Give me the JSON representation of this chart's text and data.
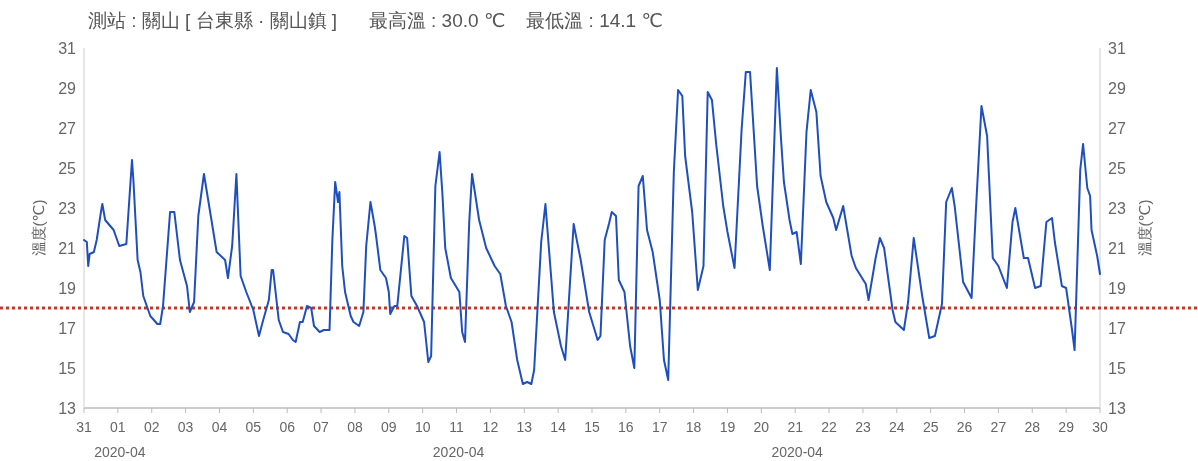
{
  "chart_data": {
    "type": "line",
    "title": "測站 : 關山 [ 台東縣 · 關山鎮 ]      最高溫 : 30.0 ℃    最低溫 : 14.1 ℃",
    "ylabel": "溫度(℃)",
    "y2label": "溫度(℃)",
    "xlim": [
      "2020-03-31",
      "2020-04-30"
    ],
    "xticks": [
      {
        "value": "2020-03-31",
        "label": "31"
      },
      {
        "value": "2020-04-01",
        "label": "01\n2020-04"
      },
      {
        "value": "2020-04-02",
        "label": "02"
      },
      {
        "value": "2020-04-03",
        "label": "03"
      },
      {
        "value": "2020-04-04",
        "label": "04"
      },
      {
        "value": "2020-04-05",
        "label": "05"
      },
      {
        "value": "2020-04-06",
        "label": "06"
      },
      {
        "value": "2020-04-07",
        "label": "07"
      },
      {
        "value": "2020-04-08",
        "label": "08"
      },
      {
        "value": "2020-04-09",
        "label": "09"
      },
      {
        "value": "2020-04-10",
        "label": "10"
      },
      {
        "value": "2020-04-11",
        "label": "11\n2020-04"
      },
      {
        "value": "2020-04-12",
        "label": "12"
      },
      {
        "value": "2020-04-13",
        "label": "13"
      },
      {
        "value": "2020-04-14",
        "label": "14"
      },
      {
        "value": "2020-04-15",
        "label": "15"
      },
      {
        "value": "2020-04-16",
        "label": "16"
      },
      {
        "value": "2020-04-17",
        "label": "17"
      },
      {
        "value": "2020-04-18",
        "label": "18"
      },
      {
        "value": "2020-04-19",
        "label": "19"
      },
      {
        "value": "2020-04-20",
        "label": "20"
      },
      {
        "value": "2020-04-21",
        "label": "21\n2020-04"
      },
      {
        "value": "2020-04-22",
        "label": "22"
      },
      {
        "value": "2020-04-23",
        "label": "23"
      },
      {
        "value": "2020-04-24",
        "label": "24"
      },
      {
        "value": "2020-04-25",
        "label": "25"
      },
      {
        "value": "2020-04-26",
        "label": "26"
      },
      {
        "value": "2020-04-27",
        "label": "27"
      },
      {
        "value": "2020-04-28",
        "label": "28"
      },
      {
        "value": "2020-04-29",
        "label": "29"
      },
      {
        "value": "2020-04-30",
        "label": "30"
      }
    ],
    "ylim": [
      13,
      31
    ],
    "yticks": [
      13,
      15,
      17,
      19,
      21,
      23,
      25,
      27,
      29,
      31
    ],
    "y2lim": [
      13,
      31
    ],
    "y2ticks": [
      13,
      15,
      17,
      19,
      21,
      23,
      25,
      27,
      29,
      31
    ],
    "grid": false,
    "marker": "none",
    "line_style": "solid",
    "ref_lines": [
      {
        "axis": "y",
        "value": 18,
        "color": "#c0392b",
        "line_style": "dotted"
      }
    ],
    "series": [
      {
        "color": "#1f4fbf",
        "x": [
          "2020-03-31T00:00",
          "2020-03-31T02:00",
          "2020-03-31T03:00",
          "2020-03-31T04:00",
          "2020-03-31T07:00",
          "2020-03-31T09:00",
          "2020-03-31T12:00",
          "2020-03-31T13:00",
          "2020-03-31T15:00",
          "2020-03-31T21:00",
          "2020-04-01T01:00",
          "2020-04-01T06:00",
          "2020-04-01T10:00",
          "2020-04-01T11:00",
          "2020-04-01T14:00",
          "2020-04-01T16:00",
          "2020-04-01T18:00",
          "2020-04-01T23:00",
          "2020-04-02T04:00",
          "2020-04-02T06:00",
          "2020-04-02T08:00",
          "2020-04-02T13:00",
          "2020-04-02T16:00",
          "2020-04-02T20:00",
          "2020-04-03T01:00",
          "2020-04-03T03:00",
          "2020-04-03T06:00",
          "2020-04-03T09:00",
          "2020-04-03T13:00",
          "2020-04-03T16:00",
          "2020-04-03T22:00",
          "2020-04-04T04:00",
          "2020-04-04T06:00",
          "2020-04-04T09:00",
          "2020-04-04T12:00",
          "2020-04-04T15:00",
          "2020-04-04T19:00",
          "2020-04-05T00:00",
          "2020-04-05T04:00",
          "2020-04-05T07:00",
          "2020-04-05T11:00",
          "2020-04-05T13:00",
          "2020-04-05T14:00",
          "2020-04-05T18:00",
          "2020-04-05T21:00",
          "2020-04-06T01:00",
          "2020-04-06T04:00",
          "2020-04-06T06:00",
          "2020-04-06T09:00",
          "2020-04-06T11:00",
          "2020-04-06T14:00",
          "2020-04-06T17:00",
          "2020-04-06T19:00",
          "2020-04-06T23:00",
          "2020-04-07T02:00",
          "2020-04-07T06:00",
          "2020-04-07T08:00",
          "2020-04-07T10:00",
          "2020-04-07T12:00",
          "2020-04-07T13:00",
          "2020-04-07T15:00",
          "2020-04-07T17:00",
          "2020-04-07T21:00",
          "2020-04-07T23:00",
          "2020-04-08T03:00",
          "2020-04-08T06:00",
          "2020-04-08T08:00",
          "2020-04-08T11:00",
          "2020-04-08T14:00",
          "2020-04-08T15:00",
          "2020-04-08T18:00",
          "2020-04-08T22:00",
          "2020-04-09T00:00",
          "2020-04-09T01:00",
          "2020-04-09T04:00",
          "2020-04-09T06:00",
          "2020-04-09T11:00",
          "2020-04-09T13:00",
          "2020-04-09T16:00",
          "2020-04-09T20:00",
          "2020-04-10T01:00",
          "2020-04-10T04:00",
          "2020-04-10T06:00",
          "2020-04-10T09:00",
          "2020-04-10T12:00",
          "2020-04-10T14:00",
          "2020-04-10T16:00",
          "2020-04-10T20:00",
          "2020-04-11T02:00",
          "2020-04-11T04:00",
          "2020-04-11T06:00",
          "2020-04-11T09:00",
          "2020-04-11T11:00",
          "2020-04-11T16:00",
          "2020-04-11T21:00",
          "2020-04-12T03:00",
          "2020-04-12T07:00",
          "2020-04-12T11:00",
          "2020-04-12T15:00",
          "2020-04-12T19:00",
          "2020-04-12T23:00",
          "2020-04-13T02:00",
          "2020-04-13T05:00",
          "2020-04-13T07:00",
          "2020-04-13T12:00",
          "2020-04-13T15:00",
          "2020-04-13T21:00",
          "2020-04-14T02:00",
          "2020-04-14T05:00",
          "2020-04-14T11:00",
          "2020-04-14T16:00",
          "2020-04-14T22:00",
          "2020-04-15T04:00",
          "2020-04-15T06:00",
          "2020-04-15T09:00",
          "2020-04-15T12:00",
          "2020-04-15T14:00",
          "2020-04-15T17:00",
          "2020-04-15T19:00",
          "2020-04-15T23:00",
          "2020-04-16T03:00",
          "2020-04-16T06:00",
          "2020-04-16T09:00",
          "2020-04-16T12:00",
          "2020-04-16T15:00",
          "2020-04-16T19:00",
          "2020-04-17T00:00",
          "2020-04-17T03:00",
          "2020-04-17T06:00",
          "2020-04-17T10:00",
          "2020-04-17T13:00",
          "2020-04-17T16:00",
          "2020-04-17T18:00",
          "2020-04-17T23:00",
          "2020-04-18T03:00",
          "2020-04-18T07:00",
          "2020-04-18T10:00",
          "2020-04-18T13:00",
          "2020-04-18T16:00",
          "2020-04-18T21:00",
          "2020-04-19T00:00",
          "2020-04-19T05:00",
          "2020-04-19T10:00",
          "2020-04-19T13:00",
          "2020-04-19T16:00",
          "2020-04-19T21:00",
          "2020-04-20T01:00",
          "2020-04-20T06:00",
          "2020-04-20T11:00",
          "2020-04-20T14:00",
          "2020-04-20T16:00",
          "2020-04-20T20:00",
          "2020-04-20T22:00",
          "2020-04-21T01:00",
          "2020-04-21T04:00",
          "2020-04-21T08:00",
          "2020-04-21T11:00",
          "2020-04-21T15:00",
          "2020-04-21T18:00",
          "2020-04-21T22:00",
          "2020-04-22T03:00",
          "2020-04-22T05:00",
          "2020-04-22T10:00",
          "2020-04-22T16:00",
          "2020-04-22T19:00",
          "2020-04-23T02:00",
          "2020-04-23T04:00",
          "2020-04-23T09:00",
          "2020-04-23T12:00",
          "2020-04-23T15:00",
          "2020-04-23T21:00",
          "2020-04-23T23:00",
          "2020-04-24T05:00",
          "2020-04-24T08:00",
          "2020-04-24T12:00",
          "2020-04-24T18:00",
          "2020-04-24T23:00",
          "2020-04-25T03:00",
          "2020-04-25T08:00",
          "2020-04-25T11:00",
          "2020-04-25T15:00",
          "2020-04-25T17:00",
          "2020-04-25T23:00",
          "2020-04-26T05:00",
          "2020-04-26T08:00",
          "2020-04-26T12:00",
          "2020-04-26T16:00",
          "2020-04-26T20:00",
          "2020-04-27T00:00",
          "2020-04-27T06:00",
          "2020-04-27T10:00",
          "2020-04-27T12:00",
          "2020-04-27T18:00",
          "2020-04-27T21:00",
          "2020-04-28T02:00",
          "2020-04-28T06:00",
          "2020-04-28T10:00",
          "2020-04-28T14:00",
          "2020-04-28T16:00",
          "2020-04-28T21:00",
          "2020-04-29T00:00",
          "2020-04-29T04:00",
          "2020-04-29T06:00",
          "2020-04-29T10:00",
          "2020-04-29T12:00",
          "2020-04-29T15:00",
          "2020-04-29T17:00",
          "2020-04-29T18:00",
          "2020-04-29T22:00",
          "2020-04-30T00:00"
        ],
        "values": [
          21.4,
          21.3,
          20.1,
          20.7,
          20.8,
          21.4,
          22.8,
          23.2,
          22.4,
          21.9,
          21.1,
          21.2,
          25.4,
          24.4,
          20.4,
          19.8,
          18.6,
          17.6,
          17.2,
          17.2,
          18.1,
          22.8,
          22.8,
          20.4,
          19.1,
          17.8,
          18.3,
          22.6,
          24.7,
          23.4,
          20.8,
          20.4,
          19.5,
          21.1,
          24.7,
          19.6,
          18.8,
          17.9,
          16.6,
          17.4,
          18.4,
          19.9,
          19.9,
          17.4,
          16.8,
          16.7,
          16.4,
          16.3,
          17.3,
          17.3,
          18.1,
          18.0,
          17.1,
          16.8,
          16.9,
          16.9,
          21.4,
          24.3,
          23.3,
          23.8,
          20.1,
          18.8,
          17.6,
          17.3,
          17.1,
          17.8,
          21.1,
          23.3,
          22.1,
          21.6,
          19.9,
          19.5,
          18.8,
          17.7,
          18.1,
          18.1,
          21.6,
          21.5,
          18.6,
          18.1,
          17.3,
          15.3,
          15.6,
          24.1,
          25.8,
          23.7,
          21.0,
          19.5,
          18.8,
          16.8,
          16.3,
          22.3,
          24.7,
          22.4,
          21.0,
          20.1,
          19.7,
          18.1,
          17.3,
          15.4,
          14.2,
          14.3,
          14.2,
          14.9,
          21.3,
          23.2,
          17.8,
          16.1,
          15.4,
          22.2,
          20.4,
          17.8,
          16.4,
          16.6,
          21.4,
          22.2,
          22.8,
          22.6,
          19.4,
          18.8,
          16.1,
          15.0,
          24.1,
          24.6,
          21.9,
          20.8,
          18.4,
          15.4,
          14.4,
          24.8,
          28.9,
          28.6,
          25.6,
          22.8,
          18.9,
          20.1,
          28.8,
          28.4,
          26.2,
          23.1,
          21.8,
          20.0,
          26.9,
          29.8,
          29.8,
          24.1,
          22.1,
          19.9,
          30.0,
          26.4,
          24.3,
          22.4,
          21.7,
          21.8,
          20.2,
          26.8,
          28.9,
          27.8,
          24.6,
          23.3,
          22.5,
          21.9,
          23.1,
          20.6,
          20.0,
          19.2,
          18.4,
          20.5,
          21.5,
          21.0,
          17.9,
          17.3,
          16.9,
          18.3,
          21.5,
          18.6,
          16.5,
          16.6,
          18.2,
          23.3,
          24.0,
          23.1,
          19.3,
          18.5,
          22.8,
          28.1,
          26.6,
          20.5,
          20.1,
          19.0,
          22.3,
          23.0,
          20.5,
          20.5,
          19.0,
          19.1,
          22.3,
          22.5,
          21.3,
          19.1,
          19.0,
          17.0,
          15.9,
          24.9,
          26.2,
          24.0,
          23.6,
          21.9,
          20.6,
          19.7
        ]
      }
    ]
  }
}
